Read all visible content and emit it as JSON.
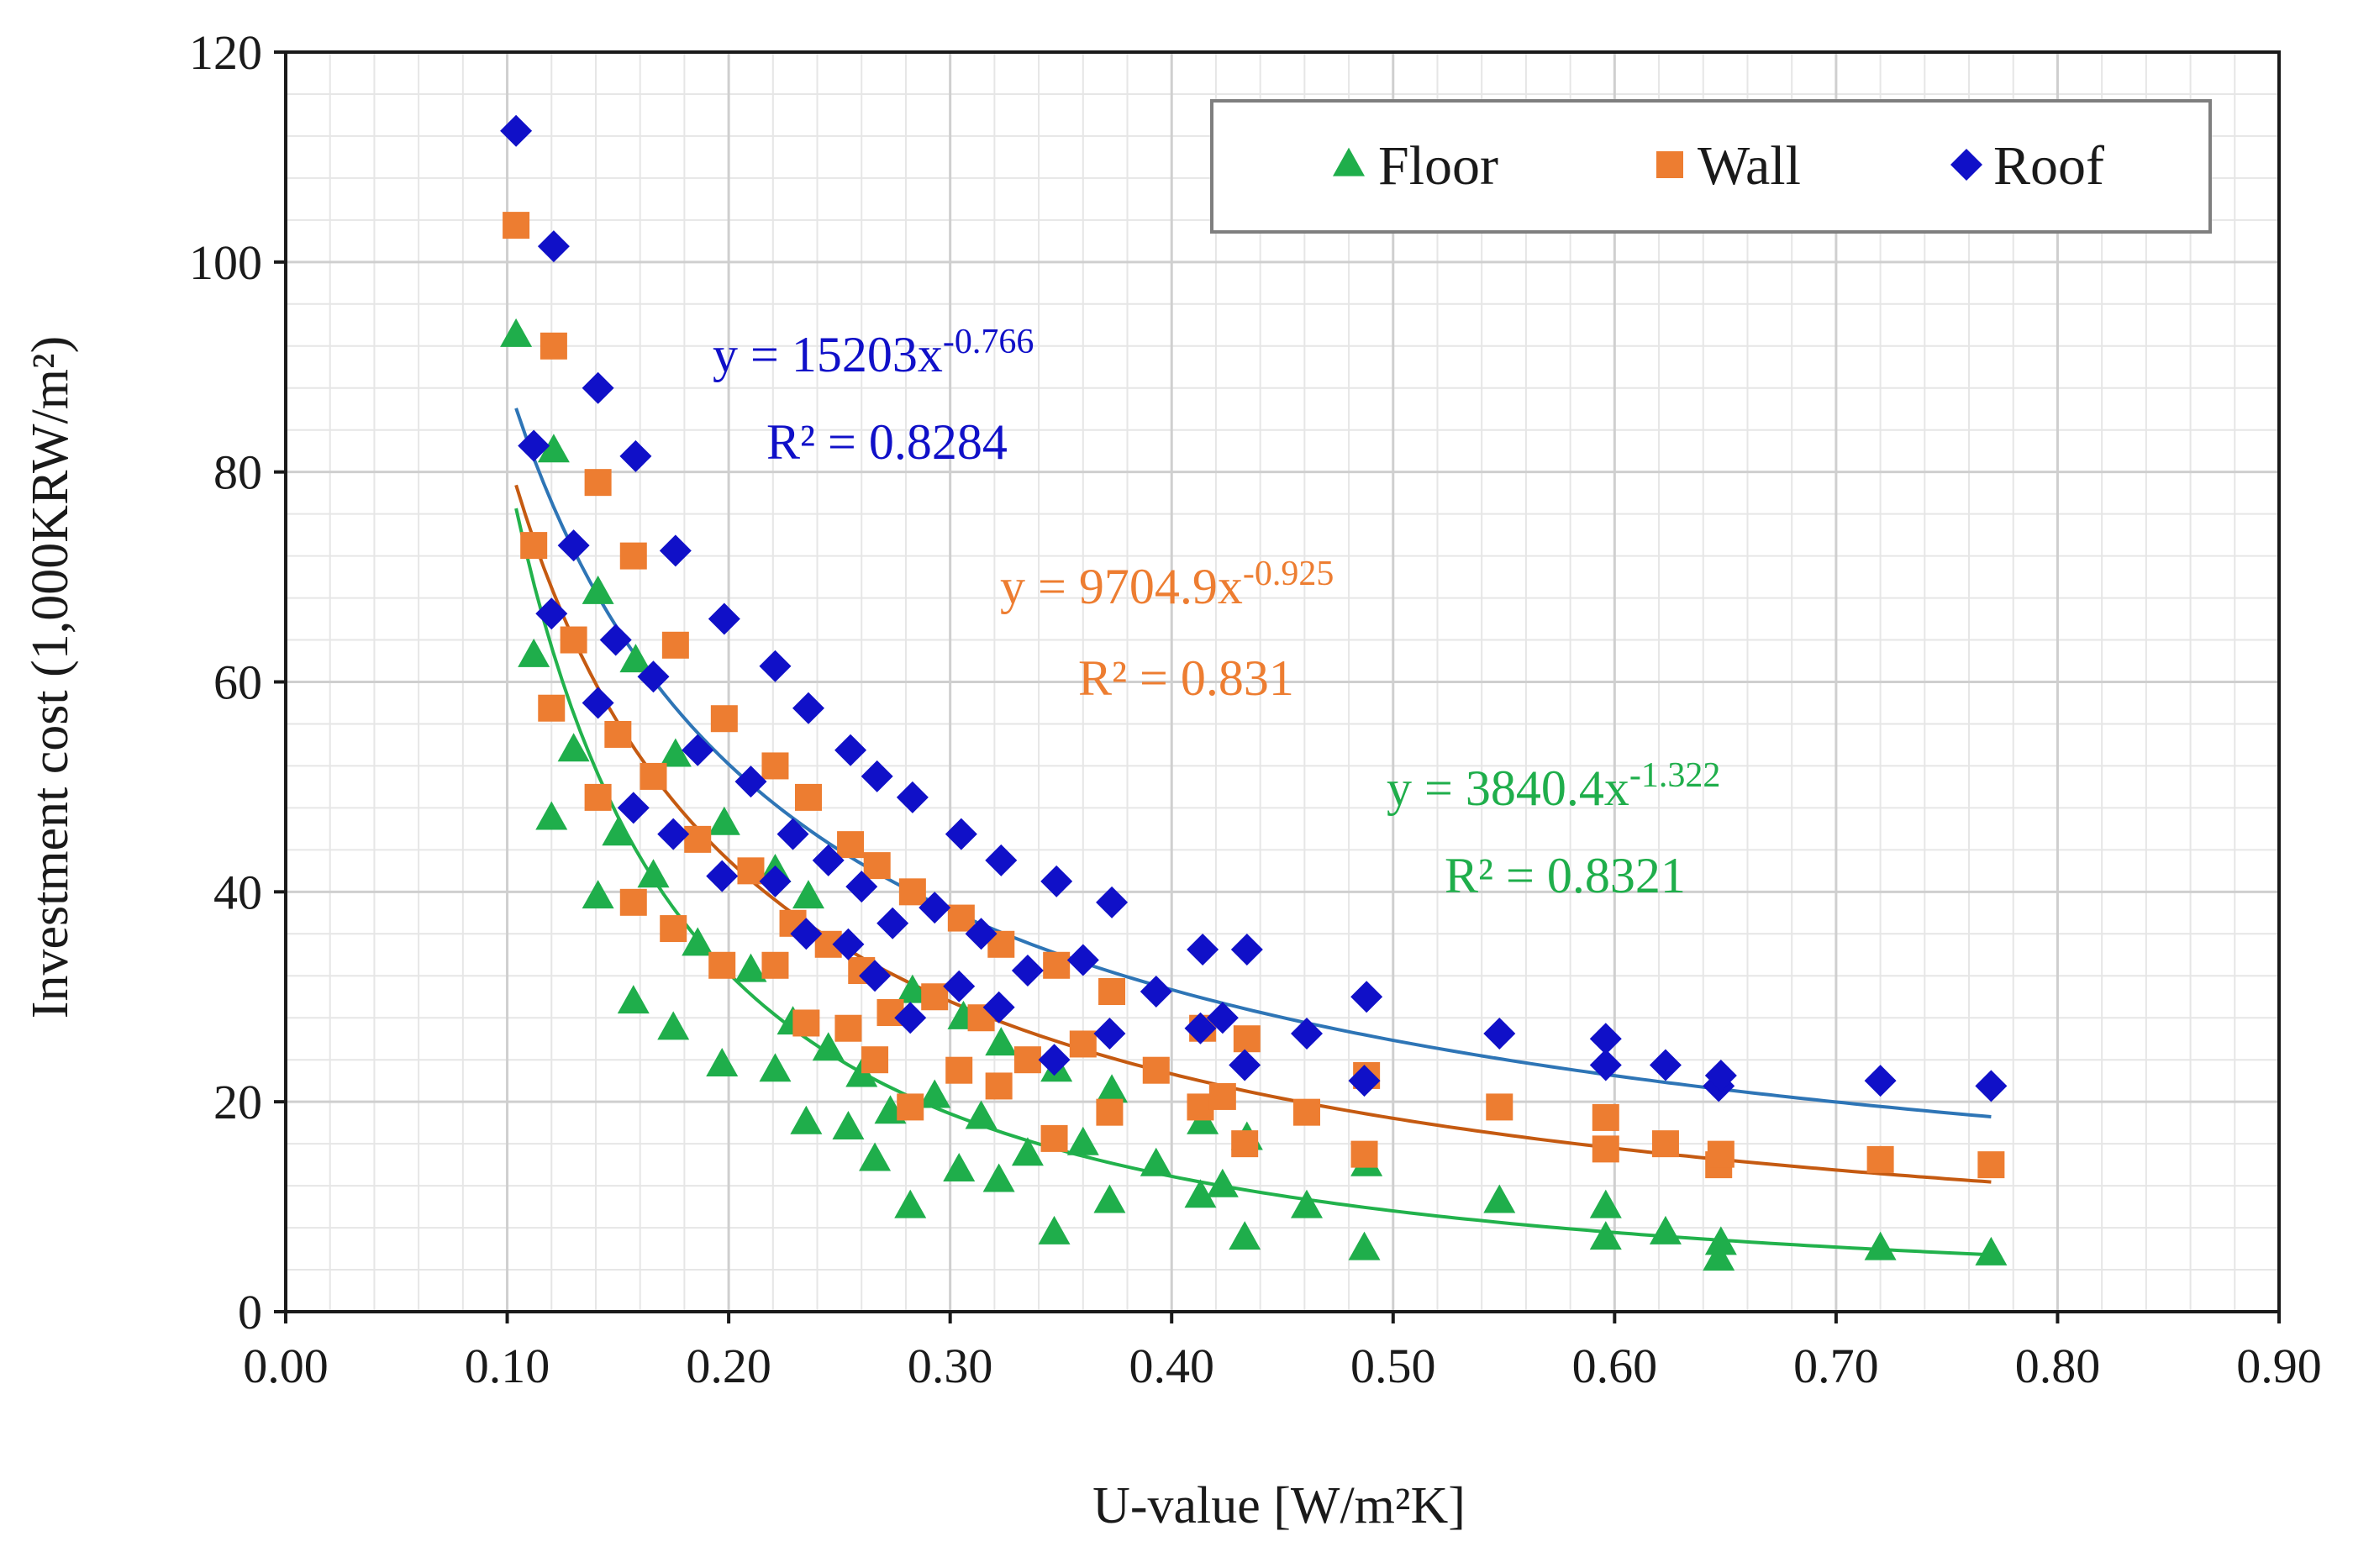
{
  "chart_data": {
    "type": "scatter",
    "title": "",
    "xlabel": "U-value [W/m²K]",
    "ylabel": "Investment cost (1,000KRW/m²)",
    "xlim": [
      0,
      0.9
    ],
    "ylim": [
      0,
      120
    ],
    "x_ticks": [
      0,
      0.1,
      0.2,
      0.3,
      0.4,
      0.5,
      0.6,
      0.7,
      0.8,
      0.9
    ],
    "x_tick_labels": [
      "0.00",
      "0.10",
      "0.20",
      "0.30",
      "0.40",
      "0.50",
      "0.60",
      "0.70",
      "0.80",
      "0.90"
    ],
    "y_ticks": [
      0,
      20,
      40,
      60,
      80,
      100,
      120
    ],
    "y_tick_labels": [
      "0",
      "20",
      "40",
      "60",
      "80",
      "100",
      "120"
    ],
    "grid": true,
    "legend_position": "top-right",
    "series": [
      {
        "name": "Floor",
        "color": "#1fae4b",
        "marker": "triangle",
        "trendline": {
          "type": "power",
          "a": 3840.4,
          "b": -1.322,
          "x_range": [
            0.104,
            0.77
          ]
        },
        "equation": {
          "prefix": "y = 3840.4x",
          "exponent": "-1.322",
          "r2": "R² = 0.8321"
        },
        "points": [
          [
            0.104,
            93
          ],
          [
            0.112,
            62.5
          ],
          [
            0.12,
            47
          ],
          [
            0.121,
            82
          ],
          [
            0.13,
            53.5
          ],
          [
            0.141,
            39.5
          ],
          [
            0.141,
            68.5
          ],
          [
            0.15,
            45.5
          ],
          [
            0.157,
            29.5
          ],
          [
            0.158,
            62
          ],
          [
            0.166,
            41.5
          ],
          [
            0.175,
            27
          ],
          [
            0.176,
            53
          ],
          [
            0.186,
            35
          ],
          [
            0.197,
            23.5
          ],
          [
            0.198,
            46.5
          ],
          [
            0.21,
            32.5
          ],
          [
            0.221,
            23
          ],
          [
            0.221,
            42
          ],
          [
            0.229,
            27.5
          ],
          [
            0.235,
            18
          ],
          [
            0.236,
            39.5
          ],
          [
            0.245,
            25
          ],
          [
            0.254,
            17.5
          ],
          [
            0.26,
            22.5
          ],
          [
            0.266,
            14.5
          ],
          [
            0.273,
            19
          ],
          [
            0.282,
            10
          ],
          [
            0.283,
            30.5
          ],
          [
            0.293,
            20.5
          ],
          [
            0.304,
            13.5
          ],
          [
            0.306,
            28
          ],
          [
            0.314,
            18.5
          ],
          [
            0.322,
            12.5
          ],
          [
            0.323,
            25.5
          ],
          [
            0.335,
            15
          ],
          [
            0.347,
            7.5
          ],
          [
            0.348,
            23
          ],
          [
            0.36,
            16
          ],
          [
            0.372,
            10.5
          ],
          [
            0.373,
            21
          ],
          [
            0.393,
            14
          ],
          [
            0.413,
            11
          ],
          [
            0.414,
            18
          ],
          [
            0.423,
            12
          ],
          [
            0.433,
            7
          ],
          [
            0.434,
            16.5
          ],
          [
            0.461,
            10
          ],
          [
            0.487,
            6
          ],
          [
            0.488,
            14
          ],
          [
            0.548,
            10.5
          ],
          [
            0.596,
            7
          ],
          [
            0.596,
            10
          ],
          [
            0.623,
            7.5
          ],
          [
            0.647,
            5
          ],
          [
            0.648,
            6.5
          ],
          [
            0.72,
            6
          ],
          [
            0.77,
            5.5
          ]
        ]
      },
      {
        "name": "Wall",
        "color": "#ed7d31",
        "marker": "square",
        "trendline": {
          "type": "power",
          "a": 9704.9,
          "b": -0.925,
          "x_range": [
            0.104,
            0.77
          ]
        },
        "equation": {
          "prefix": "y = 9704.9x",
          "exponent": "-0.925",
          "r2": "R² = 0.831"
        },
        "points": [
          [
            0.104,
            103.5
          ],
          [
            0.112,
            73
          ],
          [
            0.121,
            92
          ],
          [
            0.12,
            57.5
          ],
          [
            0.13,
            64
          ],
          [
            0.141,
            49
          ],
          [
            0.141,
            79
          ],
          [
            0.15,
            55
          ],
          [
            0.157,
            39
          ],
          [
            0.157,
            72
          ],
          [
            0.166,
            51
          ],
          [
            0.175,
            36.5
          ],
          [
            0.176,
            63.5
          ],
          [
            0.186,
            45
          ],
          [
            0.197,
            33
          ],
          [
            0.198,
            56.5
          ],
          [
            0.21,
            42
          ],
          [
            0.221,
            33
          ],
          [
            0.221,
            52
          ],
          [
            0.229,
            37
          ],
          [
            0.235,
            27.5
          ],
          [
            0.236,
            49
          ],
          [
            0.245,
            35
          ],
          [
            0.254,
            27
          ],
          [
            0.255,
            44.5
          ],
          [
            0.26,
            32.5
          ],
          [
            0.266,
            24
          ],
          [
            0.267,
            42.5
          ],
          [
            0.273,
            28.5
          ],
          [
            0.282,
            19.5
          ],
          [
            0.283,
            40
          ],
          [
            0.293,
            30
          ],
          [
            0.304,
            23
          ],
          [
            0.305,
            37.5
          ],
          [
            0.314,
            28
          ],
          [
            0.322,
            21.5
          ],
          [
            0.323,
            35
          ],
          [
            0.335,
            24
          ],
          [
            0.347,
            16.5
          ],
          [
            0.348,
            33
          ],
          [
            0.36,
            25.5
          ],
          [
            0.372,
            19
          ],
          [
            0.373,
            30.5
          ],
          [
            0.393,
            23
          ],
          [
            0.413,
            19.5
          ],
          [
            0.414,
            27
          ],
          [
            0.423,
            20.5
          ],
          [
            0.433,
            16
          ],
          [
            0.434,
            26
          ],
          [
            0.461,
            19
          ],
          [
            0.487,
            15
          ],
          [
            0.488,
            22.5
          ],
          [
            0.548,
            19.5
          ],
          [
            0.596,
            15.5
          ],
          [
            0.596,
            18.5
          ],
          [
            0.623,
            16
          ],
          [
            0.647,
            14
          ],
          [
            0.648,
            15
          ],
          [
            0.72,
            14.5
          ],
          [
            0.77,
            14
          ]
        ]
      },
      {
        "name": "Roof",
        "color": "#1010c8",
        "marker": "diamond",
        "trendline": {
          "type": "power",
          "a": 15203,
          "b": -0.766,
          "x_range": [
            0.104,
            0.77
          ]
        },
        "equation": {
          "prefix": "y = 15203x",
          "exponent": "-0.766",
          "r2": "R² = 0.8284"
        },
        "points": [
          [
            0.104,
            112.5
          ],
          [
            0.112,
            82.5
          ],
          [
            0.12,
            66.5
          ],
          [
            0.121,
            101.5
          ],
          [
            0.13,
            73
          ],
          [
            0.141,
            58
          ],
          [
            0.141,
            88
          ],
          [
            0.149,
            64
          ],
          [
            0.157,
            48
          ],
          [
            0.158,
            81.5
          ],
          [
            0.166,
            60.5
          ],
          [
            0.175,
            45.5
          ],
          [
            0.176,
            72.5
          ],
          [
            0.186,
            53.5
          ],
          [
            0.197,
            41.5
          ],
          [
            0.198,
            66
          ],
          [
            0.21,
            50.5
          ],
          [
            0.221,
            41
          ],
          [
            0.221,
            61.5
          ],
          [
            0.229,
            45.5
          ],
          [
            0.235,
            36
          ],
          [
            0.236,
            57.5
          ],
          [
            0.245,
            43
          ],
          [
            0.254,
            35
          ],
          [
            0.255,
            53.5
          ],
          [
            0.26,
            40.5
          ],
          [
            0.266,
            32
          ],
          [
            0.267,
            51
          ],
          [
            0.274,
            37
          ],
          [
            0.282,
            28
          ],
          [
            0.283,
            49
          ],
          [
            0.293,
            38.5
          ],
          [
            0.304,
            31
          ],
          [
            0.305,
            45.5
          ],
          [
            0.314,
            36
          ],
          [
            0.322,
            29
          ],
          [
            0.323,
            43
          ],
          [
            0.335,
            32.5
          ],
          [
            0.347,
            24
          ],
          [
            0.348,
            41
          ],
          [
            0.36,
            33.5
          ],
          [
            0.372,
            26.5
          ],
          [
            0.373,
            39
          ],
          [
            0.393,
            30.5
          ],
          [
            0.413,
            27
          ],
          [
            0.414,
            34.5
          ],
          [
            0.423,
            28
          ],
          [
            0.433,
            23.5
          ],
          [
            0.434,
            34.5
          ],
          [
            0.461,
            26.5
          ],
          [
            0.487,
            22
          ],
          [
            0.488,
            30
          ],
          [
            0.548,
            26.5
          ],
          [
            0.596,
            23.5
          ],
          [
            0.596,
            26
          ],
          [
            0.623,
            23.5
          ],
          [
            0.647,
            21.5
          ],
          [
            0.648,
            22.5
          ],
          [
            0.72,
            22
          ],
          [
            0.77,
            21.5
          ]
        ]
      }
    ]
  }
}
